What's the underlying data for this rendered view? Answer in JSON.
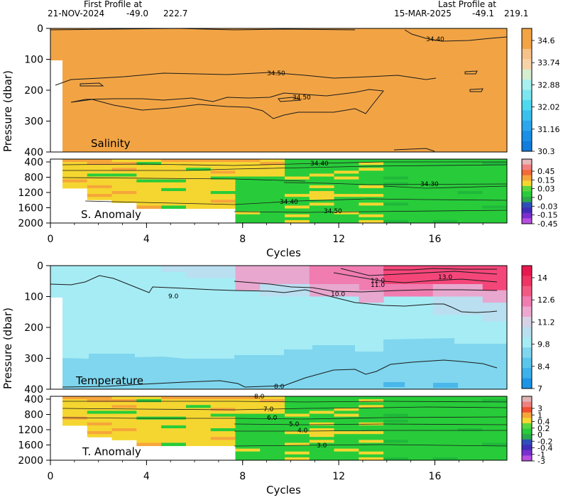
{
  "header": {
    "first_label": "First Profile at",
    "first_date": "21-NOV-2024",
    "first_lon": "-49.0",
    "first_lat": "222.7",
    "last_label": "Last Profile at",
    "last_date": "15-MAR-2025",
    "last_lon": "-49.1",
    "last_lat": "219.1"
  },
  "colors": {
    "salinity_fill": "#f2a445",
    "temp_light": "#a6ecf5",
    "temp_mid": "#7fd6ee",
    "temp_deep": "#4ab7ea",
    "anom_yellow": "#f5d630",
    "anom_green": "#28cc3a",
    "anom_orange": "#f6a53b",
    "contour": "#1a1a1a"
  },
  "chart_data": [
    {
      "id": "salinity",
      "type": "heatmap",
      "title": "Salinity",
      "xlabel": "Cycles",
      "ylabel": "Pressure (dbar)",
      "xlim": [
        0,
        19
      ],
      "ylim": [
        400,
        0
      ],
      "xticks": [
        0,
        4,
        8,
        12,
        16
      ],
      "yticks": [
        "0",
        "100",
        "200",
        "300",
        "400"
      ],
      "colorbar": [
        "34.6",
        "33.74",
        "32.88",
        "32.02",
        "31.16",
        "30.3"
      ],
      "contour_labels": [
        "34.40",
        "34.50",
        "34.50"
      ]
    },
    {
      "id": "salinity_anomaly",
      "type": "heatmap",
      "title": "S. Anomaly",
      "xlabel": "Cycles",
      "ylim": [
        2000,
        400
      ],
      "yticks": [
        "400",
        "800",
        "1200",
        "1600",
        "2000"
      ],
      "colorbar": [
        "0.45",
        "0.15",
        "0.03",
        "0",
        "-0.03",
        "-0.15",
        "-0.45"
      ],
      "contour_labels": [
        "34.40",
        "34.30",
        "34.40",
        "34.50"
      ]
    },
    {
      "id": "temperature",
      "type": "heatmap",
      "title": "Temperature",
      "xlabel": "Cycles",
      "ylabel": "Pressure (dbar)",
      "xlim": [
        0,
        19
      ],
      "ylim": [
        400,
        0
      ],
      "xticks": [
        0,
        4,
        8,
        12,
        16
      ],
      "yticks": [
        "0",
        "100",
        "200",
        "300",
        "400"
      ],
      "colorbar": [
        "14",
        "12.6",
        "11.2",
        "9.8",
        "8.4",
        "7"
      ],
      "contour_labels": [
        "9.0",
        "10.0",
        "11.0",
        "12.0",
        "13.0",
        "8.0"
      ]
    },
    {
      "id": "temperature_anomaly",
      "type": "heatmap",
      "title": "T. Anomaly",
      "xlabel": "Cycles",
      "ylim": [
        2000,
        400
      ],
      "yticks": [
        "400",
        "800",
        "1200",
        "1600",
        "2000"
      ],
      "colorbar": [
        "3",
        "1",
        "0.4",
        "0.2",
        "0",
        "-0.2",
        "-0.4",
        "-1",
        "-3"
      ],
      "contour_labels": [
        "8.0",
        "7.0",
        "6.0",
        "5.0",
        "4.0",
        "3.0"
      ]
    }
  ]
}
